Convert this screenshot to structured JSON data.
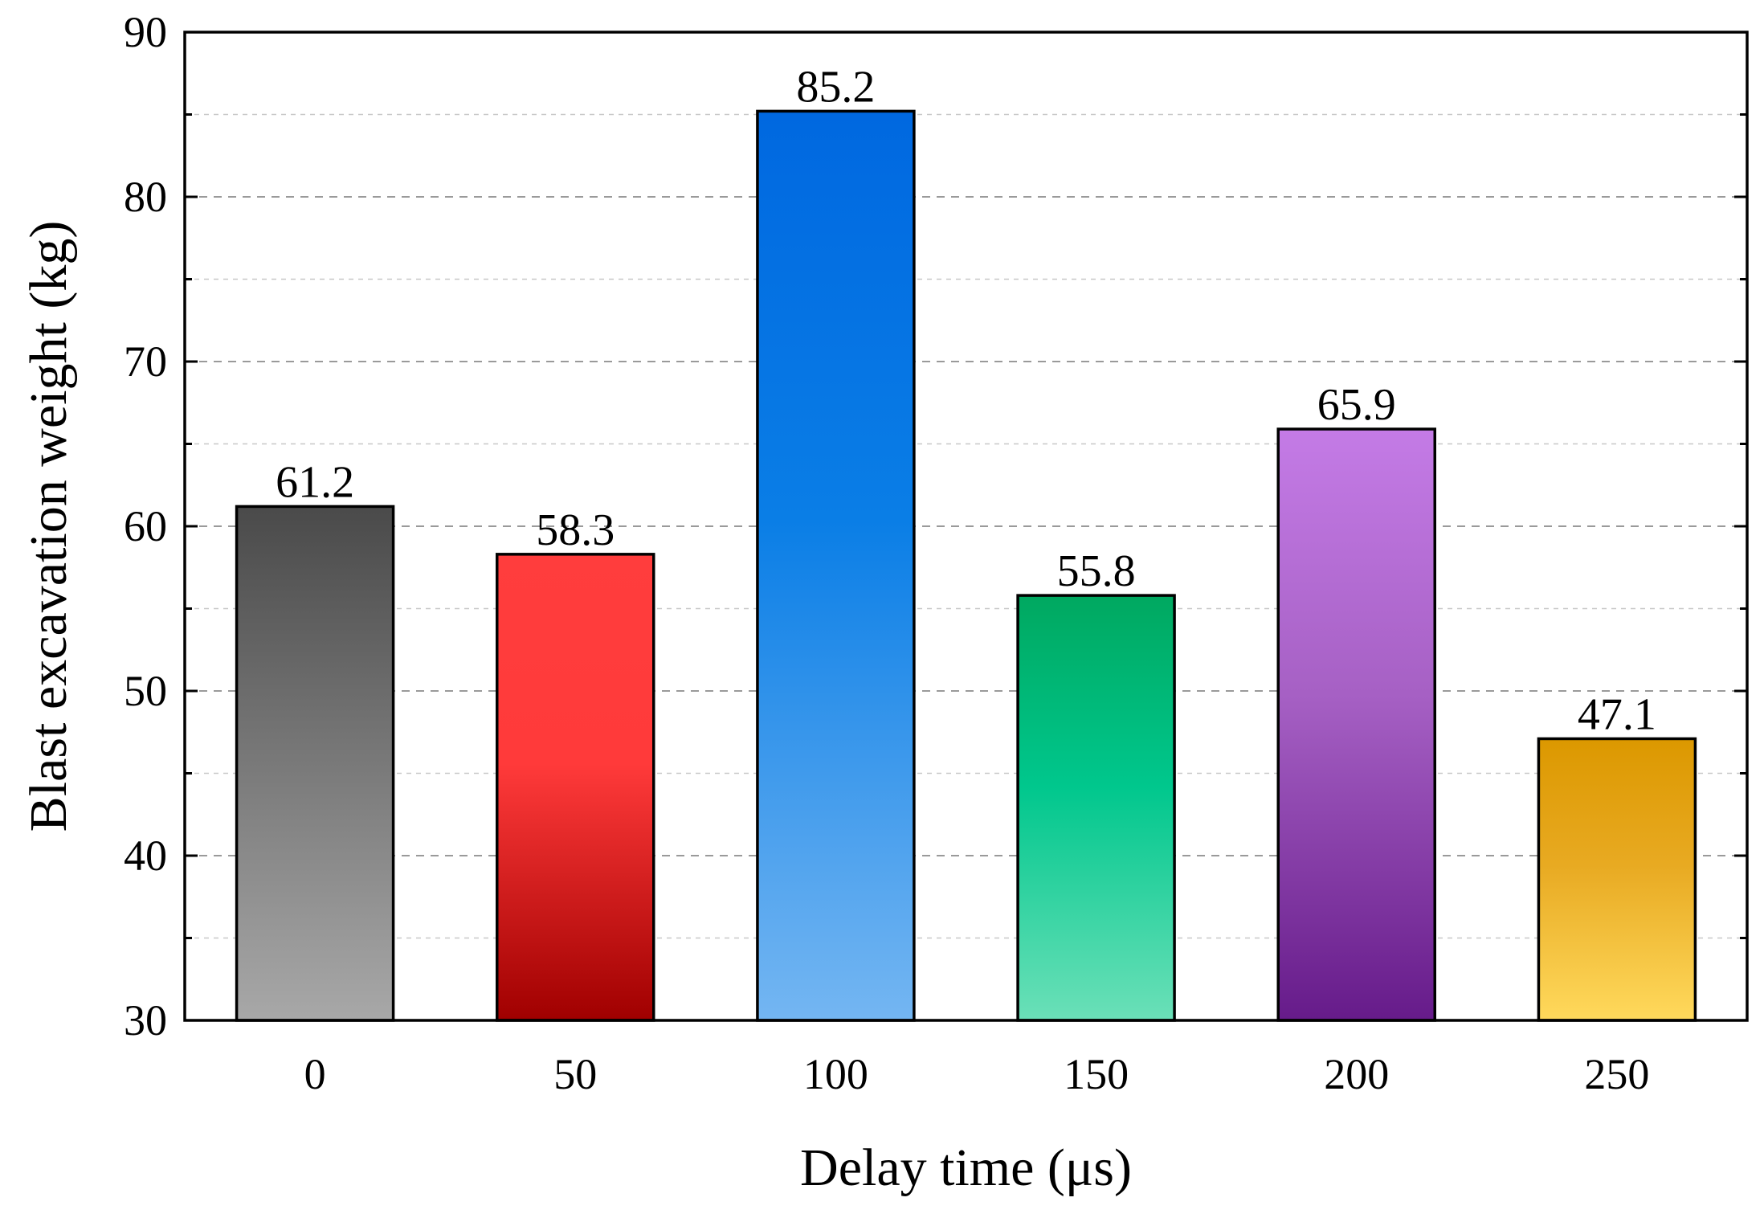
{
  "chart_data": {
    "type": "bar",
    "title": "",
    "xlabel": "Delay time (μs)",
    "ylabel": "Blast excavation weight (kg)",
    "categories": [
      "0",
      "50",
      "100",
      "150",
      "200",
      "250"
    ],
    "values": [
      61.2,
      58.3,
      85.2,
      55.8,
      65.9,
      47.1
    ],
    "value_labels": [
      "61.2",
      "58.3",
      "85.2",
      "55.8",
      "65.9",
      "47.1"
    ],
    "ylim": [
      30,
      90
    ],
    "yticks": [
      30,
      40,
      50,
      60,
      70,
      80,
      90
    ],
    "ytick_labels": [
      "30",
      "40",
      "50",
      "60",
      "70",
      "80",
      "90"
    ],
    "grid": true,
    "grid_style": "dashed",
    "legend": "none",
    "bar_gradients": [
      {
        "top": "#4a4a4a",
        "bottom": "#a8a8a8"
      },
      {
        "top": "#ff3d3d",
        "mid": "#ff3a3a",
        "bottom": "#a00000"
      },
      {
        "top": "#0068e0",
        "mid": "#0a7ee6",
        "bottom": "#74b6f2"
      },
      {
        "top": "#00a860",
        "mid": "#00c78d",
        "bottom": "#6be0b8"
      },
      {
        "top": "#c47be6",
        "mid": "#a660c4",
        "bottom": "#661b8a"
      },
      {
        "top": "#dc9800",
        "mid": "#e8aa22",
        "bottom": "#ffd95c"
      }
    ],
    "bar_stroke": "#000000"
  }
}
